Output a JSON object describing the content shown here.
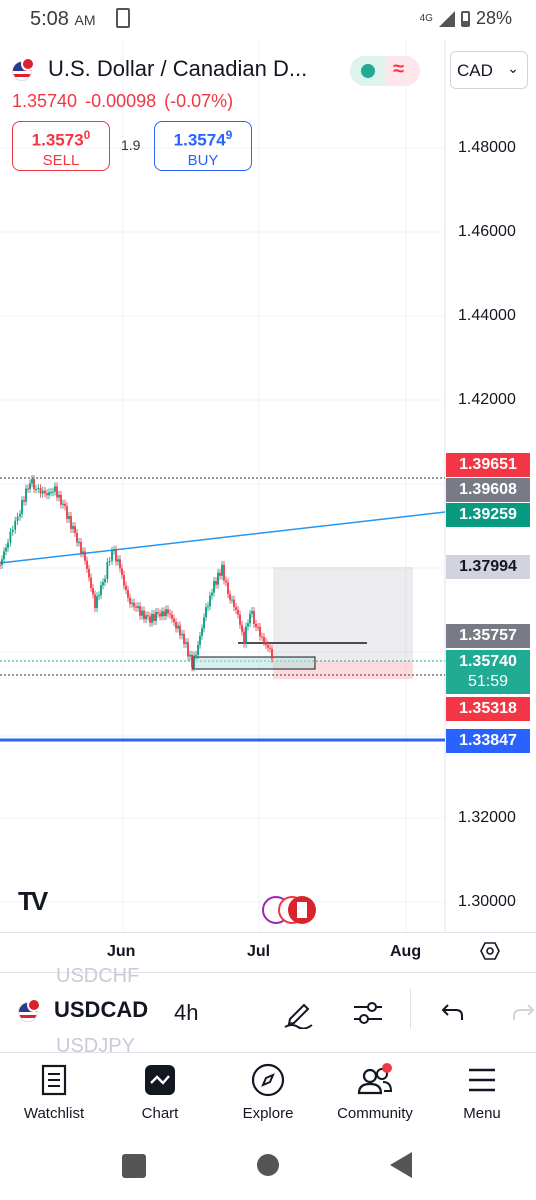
{
  "status_bar": {
    "time": "5:08",
    "ampm": "AM",
    "network": "4G",
    "battery": "28%"
  },
  "header": {
    "symbol_name": "U.S. Dollar / Canadian D...",
    "last_price": "1.35740",
    "change": "-0.00098",
    "change_pct": "(-0.07%)",
    "currency": "CAD",
    "market_open_color": "#22ab94"
  },
  "trade": {
    "sell_price_main": "1.3573",
    "sell_price_sup": "0",
    "sell_label": "SELL",
    "spread": "1.9",
    "buy_price_main": "1.3574",
    "buy_price_sup": "9",
    "buy_label": "BUY"
  },
  "chart": {
    "price_axis": [
      "1.48000",
      "1.46000",
      "1.44000",
      "1.42000",
      "1.32000",
      "1.30000"
    ],
    "price_tags": [
      {
        "label": "1.39651",
        "color": "#f23645"
      },
      {
        "label": "1.39608",
        "color": "#787b86"
      },
      {
        "label": "1.39259",
        "color": "#089981"
      },
      {
        "label": "1.37994",
        "color": "#c9cbd1"
      },
      {
        "label": "1.35757",
        "color": "#787b86"
      },
      {
        "label": "1.35740",
        "sub": "51:59",
        "color": "#22ab94"
      },
      {
        "label": "1.35318",
        "color": "#f23645"
      },
      {
        "label": "1.33847",
        "color": "#2962ff"
      }
    ],
    "time_axis": [
      "Jun",
      "Jul",
      "Aug"
    ],
    "logo": "TV"
  },
  "toolbar": {
    "ghost_above": "USDCHF",
    "symbol": "USDCAD",
    "ghost_below": "USDJPY",
    "interval": "4h"
  },
  "nav": [
    {
      "label": "Watchlist",
      "icon": "watchlist-icon"
    },
    {
      "label": "Chart",
      "icon": "chart-icon"
    },
    {
      "label": "Explore",
      "icon": "compass-icon"
    },
    {
      "label": "Community",
      "icon": "community-icon"
    },
    {
      "label": "Menu",
      "icon": "menu-icon"
    }
  ]
}
